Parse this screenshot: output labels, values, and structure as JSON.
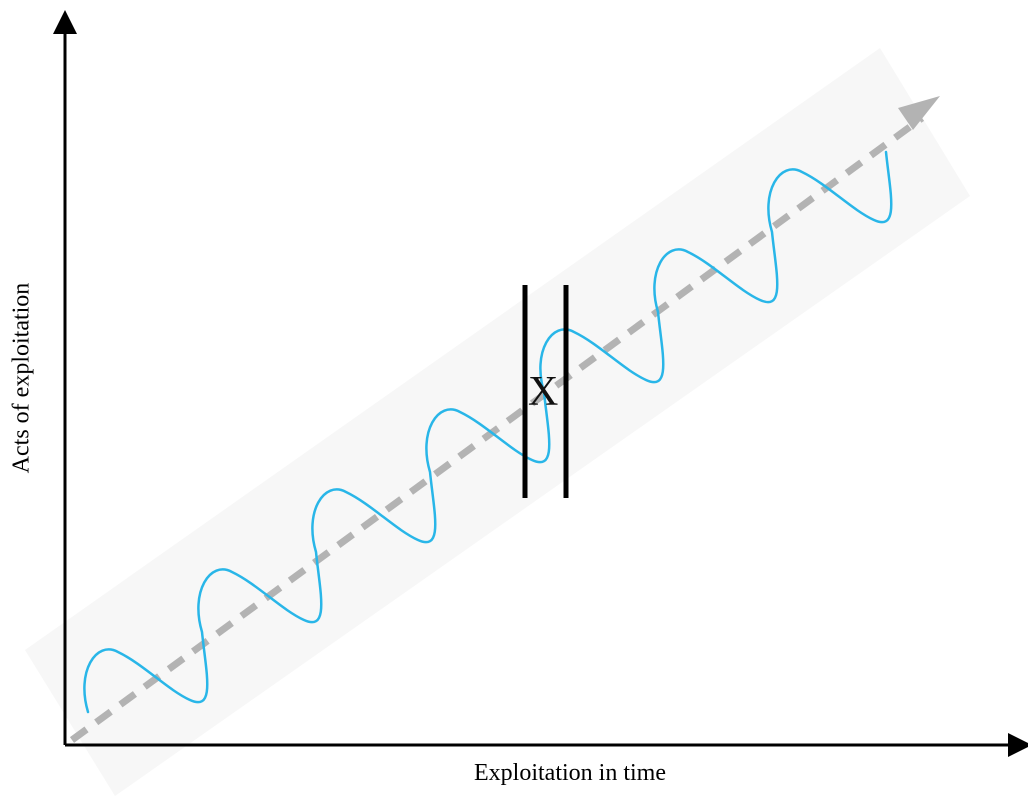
{
  "diagram": {
    "x_axis_label": "Exploitation in time",
    "y_axis_label": "Acts of exploitation",
    "marker_label": "X",
    "colors": {
      "axis": "#000000",
      "wave": "#29b6e8",
      "trend": "#b3b3b3",
      "band": "#f7f7f7",
      "bars": "#000000"
    },
    "wave_cycles": 7,
    "elements": [
      "axes",
      "background band",
      "dashed trend arrow",
      "oscillating wave",
      "double vertical bars"
    ]
  }
}
